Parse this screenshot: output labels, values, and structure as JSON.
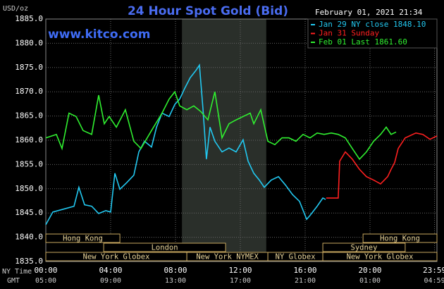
{
  "chart_data": {
    "type": "line",
    "title": "24 Hour Spot Gold (Bid)",
    "watermark": "www.kitco.com",
    "timestamp": "February 01, 2021 21:34",
    "ylabel": "USD/oz",
    "xlabel": "NY Time",
    "x2label": "GMT",
    "xlim": [
      0,
      24.13
    ],
    "ylim": [
      1835,
      1885
    ],
    "grid": true,
    "yticks": [
      {
        "value": 1885,
        "label": "1885.0"
      },
      {
        "value": 1880,
        "label": "1880.0"
      },
      {
        "value": 1875,
        "label": "1875.0"
      },
      {
        "value": 1870,
        "label": "1870.0"
      },
      {
        "value": 1865,
        "label": "1865.0"
      },
      {
        "value": 1860,
        "label": "1860.0"
      },
      {
        "value": 1855,
        "label": "1855.0"
      },
      {
        "value": 1850,
        "label": "1850.0"
      },
      {
        "value": 1845,
        "label": "1845.0"
      },
      {
        "value": 1840,
        "label": "1840.0"
      },
      {
        "value": 1835,
        "label": "1835.0"
      }
    ],
    "xticks": [
      {
        "value": 0,
        "label": "00:00"
      },
      {
        "value": 4,
        "label": "04:00"
      },
      {
        "value": 8,
        "label": "08:00"
      },
      {
        "value": 12,
        "label": "12:00"
      },
      {
        "value": 16,
        "label": "16:00"
      },
      {
        "value": 20,
        "label": "20:00"
      },
      {
        "value": 23.98,
        "label": "23:59"
      }
    ],
    "x2ticks": [
      {
        "value": 0,
        "label": "05:00"
      },
      {
        "value": 4,
        "label": "09:00"
      },
      {
        "value": 8,
        "label": "13:00"
      },
      {
        "value": 12,
        "label": "17:00"
      },
      {
        "value": 16,
        "label": "21:00"
      },
      {
        "value": 20,
        "label": "01:00"
      },
      {
        "value": 23.98,
        "label": "04:59"
      }
    ],
    "shaded_span": [
      8.4,
      13.6
    ],
    "series": [
      {
        "name": "Jan 29 NY close 1848.10",
        "color": "#22c8f0",
        "x": [
          0,
          0.43,
          1.09,
          1.74,
          2.04,
          2.39,
          2.83,
          3.26,
          3.7,
          4,
          4.26,
          4.57,
          5,
          5.43,
          5.74,
          6.09,
          6.52,
          6.83,
          7.17,
          7.61,
          7.96,
          8.26,
          8.57,
          8.91,
          9.26,
          9.48,
          9.7,
          9.91,
          10.13,
          10.43,
          10.87,
          11.3,
          11.74,
          12.17,
          12.48,
          12.83,
          13.17,
          13.48,
          13.91,
          14.35,
          14.78,
          15.22,
          15.65,
          16.09,
          16.3,
          16.74,
          17.09,
          17.26
        ],
        "values": [
          1842.6,
          1845.2,
          1845.8,
          1846.4,
          1850.3,
          1846.7,
          1846.4,
          1844.9,
          1845.5,
          1845.2,
          1853.2,
          1849.9,
          1851.3,
          1852.8,
          1857.6,
          1859.8,
          1858.6,
          1862.7,
          1865.6,
          1864.9,
          1867.4,
          1868.5,
          1870.7,
          1872.9,
          1874.4,
          1875.5,
          1866.3,
          1856.1,
          1862.7,
          1859.8,
          1857.6,
          1858.4,
          1857.6,
          1860.1,
          1855.7,
          1853.2,
          1851.8,
          1850.3,
          1851.8,
          1852.5,
          1850.8,
          1848.8,
          1847.4,
          1843.7,
          1844.5,
          1846.4,
          1848.1,
          1847.8
        ]
      },
      {
        "name": "Jan 31 Sunday",
        "color": "#ff2020",
        "x": [
          17.3,
          18.04,
          18.13,
          18.48,
          18.91,
          19.35,
          19.78,
          20.22,
          20.65,
          21.09,
          21.3,
          21.52,
          21.74,
          22.17,
          22.83,
          23.26,
          23.7,
          24.13
        ],
        "values": [
          1848.1,
          1848.1,
          1855.7,
          1857.6,
          1856.1,
          1854.0,
          1852.5,
          1851.8,
          1851.0,
          1852.5,
          1854.0,
          1855.4,
          1858.3,
          1860.5,
          1861.5,
          1861.2,
          1860.2,
          1860.9
        ]
      },
      {
        "name": "Feb 01 Last 1861.60",
        "color": "#30f030",
        "x": [
          0,
          0.65,
          1,
          1.43,
          1.87,
          2.3,
          2.83,
          3.26,
          3.61,
          3.91,
          4.35,
          4.91,
          5.43,
          5.87,
          6.52,
          7.17,
          7.61,
          7.96,
          8.26,
          8.7,
          9.13,
          9.57,
          10,
          10.43,
          10.87,
          11.3,
          11.74,
          12.17,
          12.61,
          12.83,
          13.26,
          13.7,
          14.13,
          14.57,
          15,
          15.43,
          15.87,
          16.3,
          16.74,
          17.17,
          17.61,
          18.04,
          18.48,
          18.91,
          19.35,
          19.78,
          20.22,
          20.65,
          21,
          21.3,
          21.61
        ],
        "values": [
          1860.5,
          1861.2,
          1858.3,
          1865.6,
          1864.9,
          1862.0,
          1861.2,
          1869.3,
          1863.4,
          1864.9,
          1862.7,
          1866.3,
          1859.8,
          1858.3,
          1862.0,
          1865.6,
          1868.5,
          1870.0,
          1867.1,
          1866.3,
          1867.1,
          1865.9,
          1864.2,
          1870.0,
          1860.5,
          1863.4,
          1864.2,
          1864.9,
          1865.6,
          1863.4,
          1866.3,
          1859.8,
          1859.1,
          1860.5,
          1860.5,
          1859.8,
          1861.2,
          1860.5,
          1861.5,
          1861.2,
          1861.5,
          1861.2,
          1860.5,
          1858.3,
          1856.1,
          1857.6,
          1859.8,
          1861.2,
          1862.7,
          1861.2,
          1861.7
        ]
      }
    ],
    "sessions": [
      [
        {
          "label": "Hong Kong",
          "start": 0,
          "end": 4.57
        },
        {
          "label": "Hong Kong",
          "start": 19.57,
          "end": 24.13
        }
      ],
      [
        {
          "label": "London",
          "start": 3.57,
          "end": 11.09
        },
        {
          "label": "Sydney",
          "start": 17.09,
          "end": 22.17
        }
      ],
      [
        {
          "label": "New York Globex",
          "start": 0,
          "end": 8.7
        },
        {
          "label": "New York NYMEX",
          "start": 8.7,
          "end": 13.7
        },
        {
          "label": "NY Globex",
          "start": 13.7,
          "end": 17.09
        },
        {
          "label": "New York Globex",
          "start": 17.09,
          "end": 24.13
        }
      ]
    ]
  }
}
